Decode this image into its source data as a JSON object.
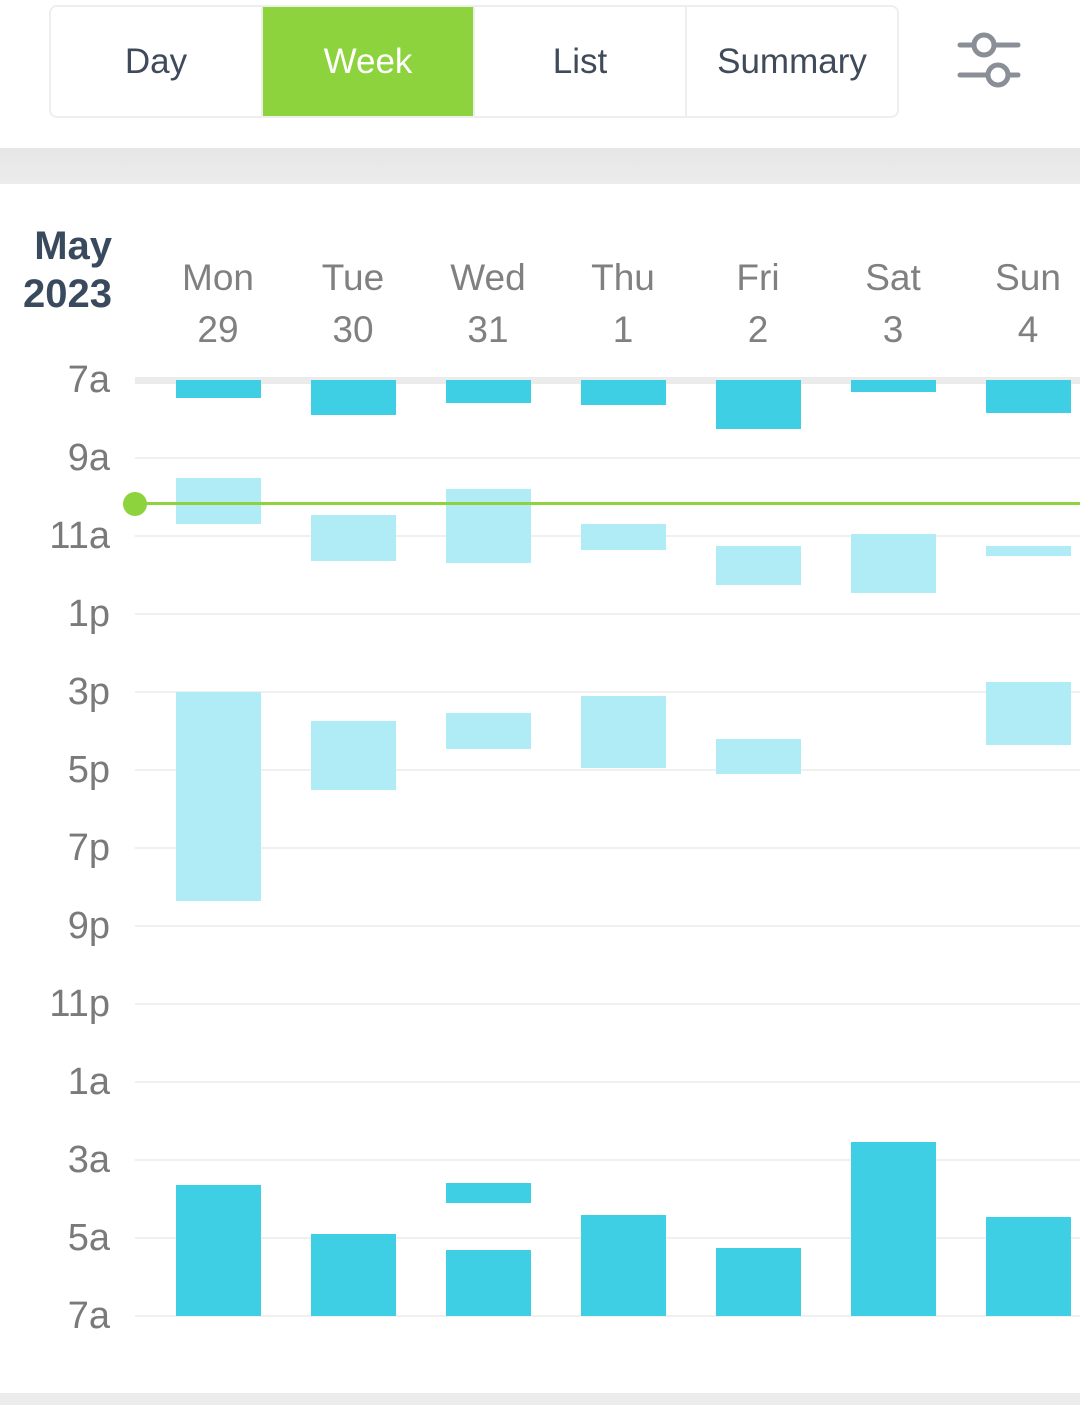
{
  "tabs": [
    {
      "label": "Day",
      "active": false
    },
    {
      "label": "Week",
      "active": true
    },
    {
      "label": "List",
      "active": false
    },
    {
      "label": "Summary",
      "active": false
    }
  ],
  "filter_icon": "sliders-icon",
  "header": {
    "month": "May",
    "year": "2023"
  },
  "days": [
    {
      "dow": "Mon",
      "date": "29"
    },
    {
      "dow": "Tue",
      "date": "30"
    },
    {
      "dow": "Wed",
      "date": "31"
    },
    {
      "dow": "Thu",
      "date": "1"
    },
    {
      "dow": "Fri",
      "date": "2"
    },
    {
      "dow": "Sat",
      "date": "3"
    },
    {
      "dow": "Sun",
      "date": "4"
    }
  ],
  "time_labels": [
    "7a",
    "9a",
    "11a",
    "1p",
    "3p",
    "5p",
    "7p",
    "9p",
    "11p",
    "1a",
    "3a",
    "5a",
    "7a"
  ],
  "colors": {
    "accent": "#8dd33d",
    "sleep": "#3ecfe4",
    "nap": "#b0ecf5"
  },
  "now_hour": 10.15,
  "sleep_blocks_hours_from_7a": [
    [
      [
        0,
        0.45
      ],
      [
        2.5,
        3.7
      ],
      [
        8.0,
        13.35
      ],
      [
        20.65,
        24
      ]
    ],
    [
      [
        0,
        0.9
      ],
      [
        3.45,
        4.65
      ],
      [
        8.75,
        10.5
      ],
      [
        21.9,
        24
      ]
    ],
    [
      [
        0,
        0.6
      ],
      [
        2.8,
        4.7
      ],
      [
        8.55,
        9.45
      ],
      [
        20.6,
        21.1
      ],
      [
        22.3,
        24
      ]
    ],
    [
      [
        0,
        0.65
      ],
      [
        3.7,
        4.35
      ],
      [
        8.1,
        9.95
      ],
      [
        21.4,
        24
      ]
    ],
    [
      [
        0,
        1.25
      ],
      [
        4.25,
        5.25
      ],
      [
        9.2,
        10.1
      ],
      [
        22.25,
        24
      ]
    ],
    [
      [
        0,
        0.3
      ],
      [
        3.95,
        5.45
      ],
      [
        19.55,
        24
      ]
    ],
    [
      [
        0,
        0.85
      ],
      [
        4.25,
        4.5
      ],
      [
        7.75,
        9.35
      ],
      [
        21.45,
        24
      ]
    ]
  ]
}
